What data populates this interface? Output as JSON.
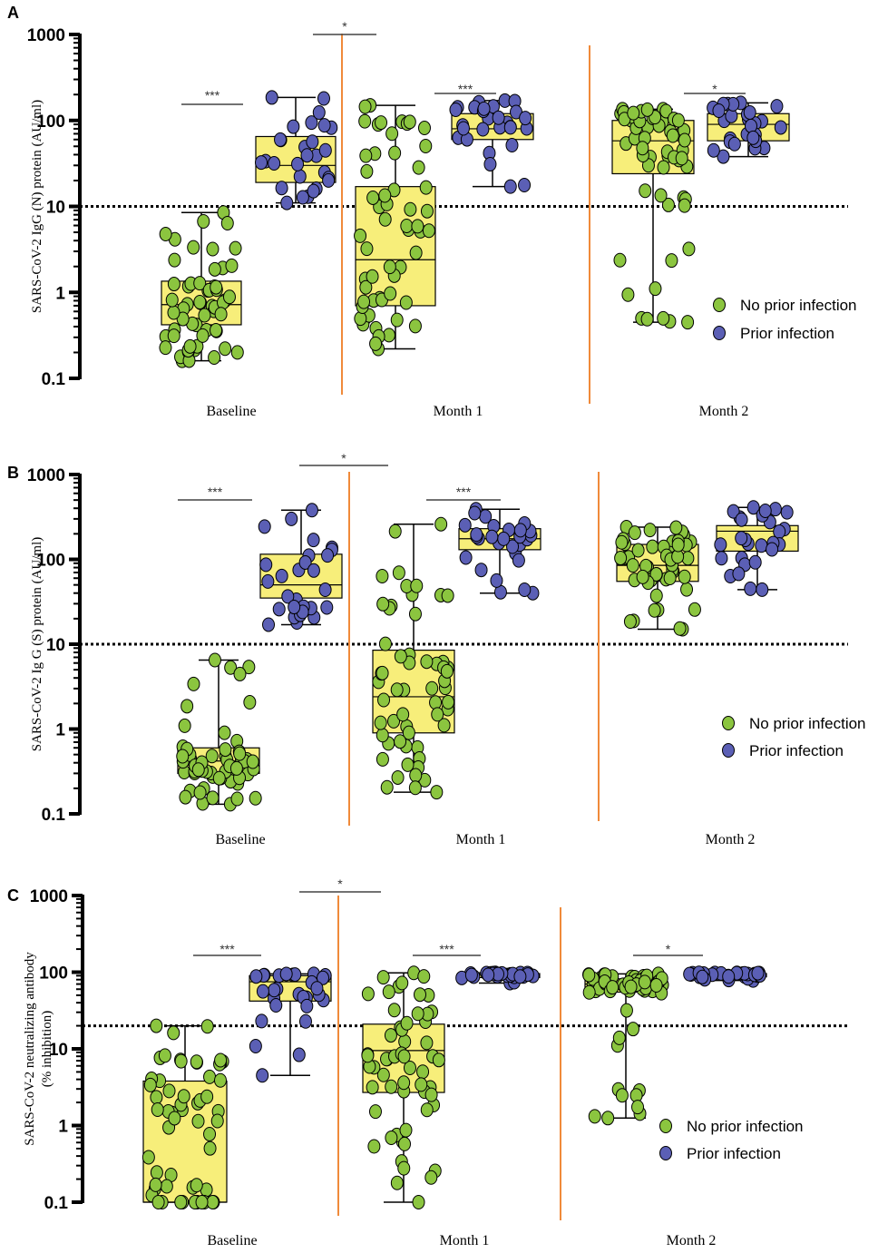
{
  "figure": {
    "background": "#ffffff",
    "colors": {
      "box_fill": "#f7ee7a",
      "no_prior": "#8bc53f",
      "prior": "#5b5fb5",
      "separator": "#f08a3a",
      "threshold": "#000000"
    }
  },
  "chart_data": [
    {
      "panel": "A",
      "type": "scatter",
      "ylabel": "SARS-CoV-2  IgG (N) protein (AU/ml)",
      "yscale": "log",
      "ylim": [
        0.1,
        1000
      ],
      "yticks": [
        "0.1",
        "1",
        "10",
        "100",
        "1000"
      ],
      "threshold": 10,
      "categories": [
        "Baseline",
        "Month 1",
        "Month 2"
      ],
      "legend": {
        "no_prior": "No prior infection",
        "prior": "Prior infection"
      },
      "series": [
        {
          "name": "No prior infection",
          "group": "no_prior",
          "boxes": [
            {
              "category": "Baseline",
              "min": 0.16,
              "q1": 0.42,
              "median": 0.72,
              "q3": 1.35,
              "max": 8.5
            },
            {
              "category": "Month 1",
              "min": 0.22,
              "q1": 0.7,
              "median": 2.4,
              "q3": 17,
              "max": 150
            },
            {
              "category": "Month 2",
              "min": 0.45,
              "q1": 24,
              "median": 58,
              "q3": 100,
              "max": 135
            }
          ]
        },
        {
          "name": "Prior infection",
          "group": "prior",
          "boxes": [
            {
              "category": "Baseline",
              "min": 11,
              "q1": 19,
              "median": 30,
              "q3": 65,
              "max": 185
            },
            {
              "category": "Month 1",
              "min": 17,
              "q1": 60,
              "median": 80,
              "q3": 120,
              "max": 170
            },
            {
              "category": "Month 2",
              "min": 38,
              "q1": 58,
              "median": 90,
              "q3": 120,
              "max": 160
            }
          ]
        }
      ],
      "significance": [
        {
          "label": "***",
          "between": "Baseline no prior vs prior"
        },
        {
          "label": "*",
          "between": "Baseline prior vs Month 1 no prior"
        },
        {
          "label": "***",
          "between": "Month 1 no prior vs prior"
        },
        {
          "label": "*",
          "between": "Month 2 no prior vs prior"
        }
      ]
    },
    {
      "panel": "B",
      "type": "scatter",
      "ylabel": "SARS-CoV-2  Ig G (S) protein (AU/ml)",
      "yscale": "log",
      "ylim": [
        0.1,
        1000
      ],
      "yticks": [
        "0.1",
        "1",
        "10",
        "100",
        "1000"
      ],
      "threshold": 10,
      "categories": [
        "Baseline",
        "Month 1",
        "Month 2"
      ],
      "legend": {
        "no_prior": "No prior infection",
        "prior": "Prior infection"
      },
      "series": [
        {
          "name": "No prior infection",
          "group": "no_prior",
          "boxes": [
            {
              "category": "Baseline",
              "min": 0.13,
              "q1": 0.3,
              "median": 0.42,
              "q3": 0.6,
              "max": 6.5
            },
            {
              "category": "Month 1",
              "min": 0.18,
              "q1": 0.9,
              "median": 2.4,
              "q3": 8.5,
              "max": 260
            },
            {
              "category": "Month 2",
              "min": 15,
              "q1": 55,
              "median": 85,
              "q3": 150,
              "max": 240
            }
          ]
        },
        {
          "name": "Prior infection",
          "group": "prior",
          "boxes": [
            {
              "category": "Baseline",
              "min": 17,
              "q1": 35,
              "median": 50,
              "q3": 115,
              "max": 380
            },
            {
              "category": "Month 1",
              "min": 40,
              "q1": 130,
              "median": 175,
              "q3": 230,
              "max": 390
            },
            {
              "category": "Month 2",
              "min": 44,
              "q1": 125,
              "median": 215,
              "q3": 250,
              "max": 410
            }
          ]
        }
      ],
      "significance": [
        {
          "label": "***",
          "between": "Baseline no prior vs prior"
        },
        {
          "label": "*",
          "between": "Baseline prior vs Month 1 no prior"
        },
        {
          "label": "***",
          "between": "Month 1 no prior vs prior"
        }
      ]
    },
    {
      "panel": "C",
      "type": "scatter",
      "ylabel": "SARS-CoV-2  neutralizing antibody",
      "ylabel2": "(% inhibition)",
      "yscale": "log",
      "ylim": [
        0.1,
        1000
      ],
      "yticks": [
        "0.1",
        "1",
        "10",
        "100",
        "1000"
      ],
      "threshold": 20,
      "categories": [
        "Baseline",
        "Month 1",
        "Month 2"
      ],
      "legend": {
        "no_prior": "No prior infection",
        "prior": "Prior infection"
      },
      "series": [
        {
          "name": "No prior infection",
          "group": "no_prior",
          "boxes": [
            {
              "category": "Baseline",
              "min": 0.1,
              "q1": 0.1,
              "median": 0.1,
              "q3": 3.8,
              "max": 20
            },
            {
              "category": "Month 1",
              "min": 0.1,
              "q1": 2.7,
              "median": 9.5,
              "q3": 21,
              "max": 98
            },
            {
              "category": "Month 2",
              "min": 1.25,
              "q1": 55,
              "median": 70,
              "q3": 82,
              "max": 95
            }
          ]
        },
        {
          "name": "Prior infection",
          "group": "prior",
          "boxes": [
            {
              "category": "Baseline",
              "min": 4.5,
              "q1": 42,
              "median": 75,
              "q3": 90,
              "max": 95
            },
            {
              "category": "Month 1",
              "min": 72,
              "q1": 85,
              "median": 92,
              "q3": 96,
              "max": 98
            },
            {
              "category": "Month 2",
              "min": 78,
              "q1": 87,
              "median": 92,
              "q3": 96,
              "max": 98
            }
          ]
        }
      ],
      "significance": [
        {
          "label": "***",
          "between": "Baseline no prior vs prior"
        },
        {
          "label": "*",
          "between": "Baseline prior vs Month 1 no prior"
        },
        {
          "label": "***",
          "between": "Month 1 no prior vs prior"
        },
        {
          "label": "*",
          "between": "Month 2 no prior vs prior"
        }
      ]
    }
  ]
}
